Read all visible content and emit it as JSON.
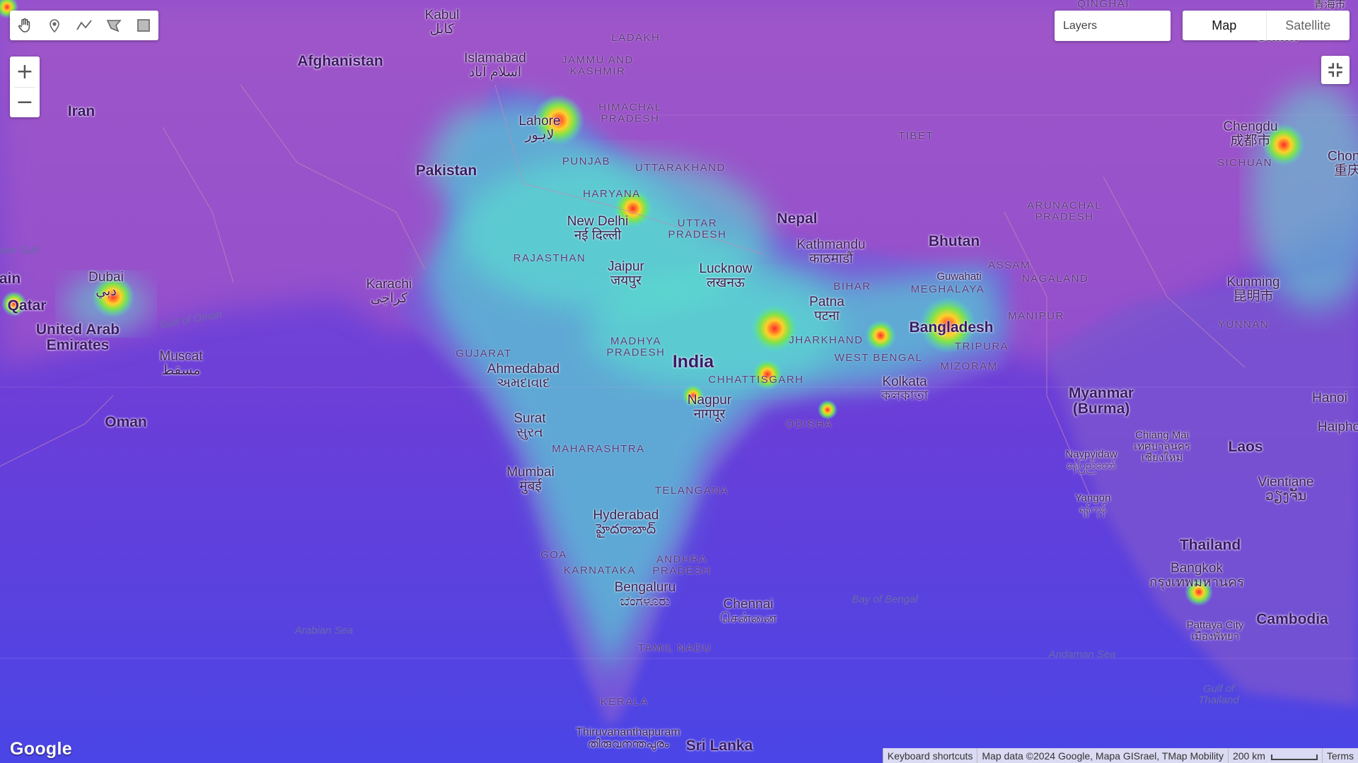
{
  "toolbar": {
    "tools": [
      "hand-icon",
      "marker-icon",
      "polyline-icon",
      "polygon-icon",
      "rectangle-icon"
    ]
  },
  "zoom": {
    "in_label": "+",
    "out_label": "−"
  },
  "layers": {
    "label": "Layers"
  },
  "map_type": {
    "map_label": "Map",
    "satellite_label": "Satellite",
    "selected": "Map"
  },
  "fullscreen": {
    "icon": "fullscreen-exit-icon"
  },
  "footer": {
    "keyboard": "Keyboard shortcuts",
    "attribution": "Map data ©2024 Google, Mapa GISrael, TMap Mobility",
    "scale": "200 km",
    "terms": "Terms"
  },
  "logo": "Google",
  "labels": {
    "countries": {
      "afghanistan": "Afghanistan",
      "iran": "Iran",
      "pakistan": "Pakistan",
      "nepal": "Nepal",
      "bhutan": "Bhutan",
      "tibet": "TIBET",
      "bangladesh": "Bangladesh",
      "india": "India",
      "myanmar": "Myanmar",
      "myanmar2": "(Burma)",
      "laos": "Laos",
      "thailand": "Thailand",
      "cambodia": "Cambodia",
      "oman": "Oman",
      "qatar": "Qatar",
      "uae1": "United Arab",
      "uae2": "Emirates",
      "sri_lanka": "Sri Lanka",
      "china": "China",
      "bahrain": "ain"
    },
    "states": {
      "ladakh": "LADAKH",
      "jk1": "JAMMU AND",
      "jk2": "KASHMIR",
      "hp1": "HIMACHAL",
      "hp2": "PRADESH",
      "punjab": "PUNJAB",
      "uttarakhand": "UTTARAKHAND",
      "haryana": "HARYANA",
      "up1": "UTTAR",
      "up2": "PRADESH",
      "rajasthan": "RAJASTHAN",
      "bihar": "BIHAR",
      "jharkhand": "JHARKHAND",
      "wb": "WEST BENGAL",
      "mp1": "MADHYA",
      "mp2": "PRADESH",
      "gujarat": "GUJARAT",
      "chhattisgarh": "CHHATTISGARH",
      "odisha": "ODISHA",
      "maharashtra": "MAHARASHTRA",
      "telangana": "TELANGANA",
      "goa": "GOA",
      "karnataka": "KARNATAKA",
      "ap1": "ANDHRA",
      "ap2": "PRADESH",
      "tamil_nadu": "TAMIL NADU",
      "kerala": "KERALA",
      "assam": "ASSAM",
      "meghalaya": "MEGHALAYA",
      "nagaland": "NAGALAND",
      "manipur": "MANIPUR",
      "tripura": "TRIPURA",
      "mizoram": "MIZORAM",
      "arunachal1": "ARUNACHAL",
      "arunachal2": "PRADESH",
      "sichuan": "SICHUAN",
      "yunnan": "YUNNAN",
      "qinghai": "QINGHAI"
    },
    "cities": {
      "kabul": "Kabul",
      "kabul_l": "کابل",
      "islamabad": "Islamabad",
      "islamabad_l": "اسلام آباد",
      "lahore": "Lahore",
      "lahore_l": "لاہور",
      "karachi": "Karachi",
      "karachi_l": "کراچی",
      "new_delhi": "New Delhi",
      "new_delhi_l": "नई दिल्ली",
      "jaipur": "Jaipur",
      "jaipur_l": "जयपुर",
      "lucknow": "Lucknow",
      "lucknow_l": "लखनऊ",
      "kathmandu": "Kathmandu",
      "kathmandu_l": "काठमाडौं",
      "patna": "Patna",
      "patna_l": "पटना",
      "guwahati": "Guwahati",
      "kolkata": "Kolkata",
      "kolkata_l": "কলকাতা",
      "ahmedabad": "Ahmedabad",
      "ahmedabad_l": "અમદાવાદ",
      "surat": "Surat",
      "surat_l": "સુરત",
      "nagpur": "Nagpur",
      "nagpur_l": "नागपूर",
      "mumbai": "Mumbai",
      "mumbai_l": "मुंबई",
      "hyderabad": "Hyderabad",
      "hyderabad_l": "హైదరాబాద్",
      "bengaluru": "Bengaluru",
      "bengaluru_l": "ಬೆಂಗಳೂರು",
      "chennai": "Chennai",
      "chennai_l": "சென்னை",
      "thiruvananthapuram": "Thiruvananthapuram",
      "thiruvananthapuram_l": "തിരുവനന്തപുരം",
      "dubai": "Dubai",
      "dubai_l": "دبي",
      "muscat": "Muscat",
      "muscat_l": "مسقط",
      "chengdu": "Chengdu",
      "chengdu_l": "成都市",
      "chongqing": "Chong",
      "chongqing_l": "重庆",
      "kunming": "Kunming",
      "kunming_l": "昆明市",
      "naypyidaw": "Naypyidaw",
      "naypyidaw_l": "နေပြည်တော်",
      "yangon": "Yangon",
      "yangon_l": "ရန်ကုန်",
      "chiang_mai": "Chiang Mai",
      "chiang_mai_l1": "เทศบาลนคร",
      "chiang_mai_l2": "เชียงใหม่",
      "bangkok": "Bangkok",
      "bangkok_l": "กรุงเทพมหานคร",
      "pattaya": "Pattaya City",
      "pattaya_l": "เมืองพัทยา",
      "vientiane": "Vientiane",
      "vientiane_l": "ວຽງຈັນ",
      "hanoi": "Hanoi",
      "haiphong": "Haipho",
      "qinghai_cn": "青海市"
    },
    "water": {
      "gulf_oman": "Gulf of Oman",
      "arabian_sea": "Arabian Sea",
      "bay_bengal": "Bay of Bengal",
      "andaman": "Andaman Sea",
      "gulf_thailand1": "Gulf of",
      "gulf_thailand2": "Thailand",
      "persian": "sian Gulf"
    }
  }
}
